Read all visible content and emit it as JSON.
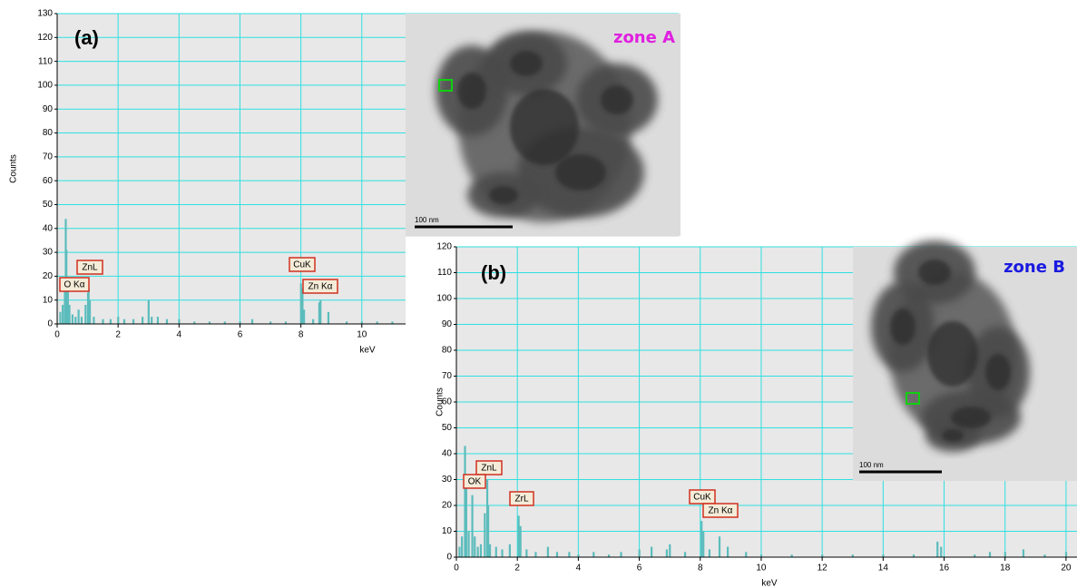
{
  "chart_data": [
    {
      "type": "bar",
      "panel_label": "(a)",
      "y_label": "Counts",
      "x_label": "keV",
      "xlim": [
        0,
        20.4
      ],
      "xticks": [
        0,
        2,
        4,
        6,
        8,
        10
      ],
      "ylim": [
        0,
        130
      ],
      "yticks": [
        0,
        10,
        20,
        30,
        40,
        50,
        60,
        70,
        80,
        90,
        100,
        110,
        120,
        130
      ],
      "grid": true,
      "color": "#5cbcbc",
      "x": [
        0.1,
        0.18,
        0.25,
        0.28,
        0.3,
        0.35,
        0.4,
        0.5,
        0.6,
        0.7,
        0.8,
        0.93,
        1.01,
        1.03,
        1.07,
        1.2,
        1.5,
        1.75,
        2.0,
        2.2,
        2.5,
        2.8,
        3.0,
        3.1,
        3.3,
        3.6,
        4.0,
        4.5,
        5.0,
        5.5,
        6.0,
        6.4,
        7.0,
        7.5,
        8.0,
        8.05,
        8.1,
        8.4,
        8.6,
        8.64,
        8.9,
        9.5,
        10.0,
        10.5,
        11.0
      ],
      "values": [
        5,
        8,
        18,
        44,
        31,
        15,
        8,
        4,
        3,
        6,
        3,
        8,
        13,
        15,
        10,
        3,
        2,
        2,
        3,
        2,
        2,
        3,
        10,
        3,
        3,
        2,
        2,
        1,
        1,
        1,
        1,
        2,
        1,
        1,
        17,
        15,
        6,
        2,
        9,
        10,
        5,
        1,
        1,
        1,
        1
      ],
      "annotations": [
        "ZnL",
        "O Kα",
        "CuK",
        "Zn Kα"
      ],
      "inset": {
        "label": "zone A",
        "scale_bar": "100 nm",
        "label_color": "#e020e0"
      }
    },
    {
      "type": "bar",
      "panel_label": "(b)",
      "y_label": "Counts",
      "x_label": "keV",
      "xlim": [
        0,
        20.36
      ],
      "xticks": [
        0,
        2,
        4,
        6,
        8,
        10,
        12,
        14,
        16,
        18,
        20
      ],
      "ylim": [
        0,
        120
      ],
      "yticks": [
        0,
        10,
        20,
        30,
        40,
        50,
        60,
        70,
        80,
        90,
        100,
        110,
        120
      ],
      "grid": true,
      "color": "#5cbcbc",
      "x": [
        0.1,
        0.18,
        0.28,
        0.32,
        0.4,
        0.52,
        0.6,
        0.7,
        0.8,
        0.93,
        1.01,
        1.04,
        1.1,
        1.3,
        1.5,
        1.75,
        2.04,
        2.1,
        2.3,
        2.6,
        3.0,
        3.3,
        3.7,
        4.0,
        4.5,
        5.0,
        5.4,
        6.0,
        6.4,
        6.9,
        7.0,
        7.5,
        8.04,
        8.1,
        8.3,
        8.63,
        8.9,
        9.5,
        10.0,
        11.0,
        12.0,
        13.0,
        14.0,
        15.0,
        15.78,
        15.9,
        17.0,
        17.5,
        18.0,
        18.6,
        19.3,
        20.0
      ],
      "values": [
        4,
        8,
        43,
        30,
        10,
        24,
        8,
        4,
        5,
        17,
        30,
        20,
        5,
        4,
        3,
        5,
        16,
        12,
        3,
        2,
        4,
        2,
        2,
        1,
        2,
        1,
        2,
        3,
        4,
        3,
        5,
        2,
        14,
        10,
        3,
        8,
        4,
        2,
        1,
        1,
        1,
        1,
        1,
        1,
        6,
        4,
        1,
        2,
        2,
        3,
        1,
        2
      ],
      "annotations": [
        "ZnL",
        "OK",
        "ZrL",
        "CuK",
        "Zn Kα"
      ],
      "inset": {
        "label": "zone B",
        "scale_bar": "100 nm",
        "label_color": "#1a1ae0"
      }
    }
  ]
}
